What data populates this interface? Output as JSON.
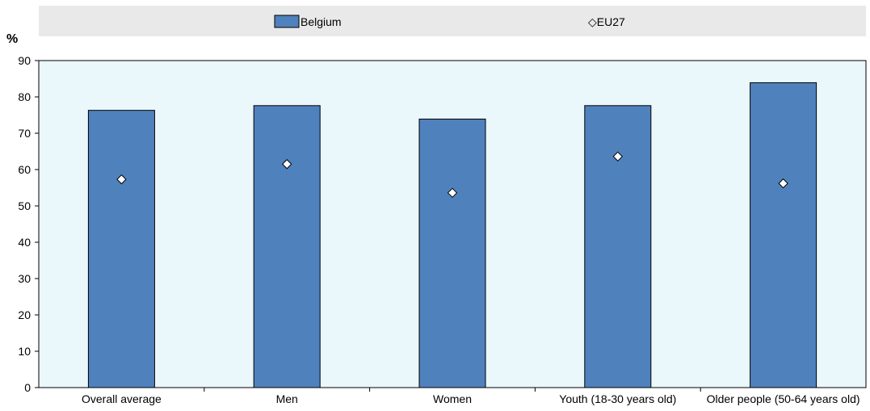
{
  "chart_data": {
    "type": "bar",
    "unit_label": "%",
    "categories": [
      "Overall average",
      "Men",
      "Women",
      "Youth (18-30 years old)",
      "Older people (50-64 years old)"
    ],
    "series": [
      {
        "name": "Belgium",
        "kind": "bar",
        "values": [
          76.3,
          77.6,
          73.9,
          77.6,
          83.9
        ]
      },
      {
        "name": "EU27",
        "kind": "marker",
        "values": [
          57.3,
          61.5,
          53.6,
          63.6,
          56.2
        ]
      }
    ],
    "ylim": [
      0,
      90
    ],
    "yticks": [
      0,
      10,
      20,
      30,
      40,
      50,
      60,
      70,
      80,
      90
    ],
    "legend": {
      "position": "top",
      "items": [
        {
          "symbol": "bar",
          "label": "Belgium"
        },
        {
          "symbol": "diamond",
          "label": "◇EU27"
        }
      ]
    },
    "grid": false,
    "colors": {
      "bar": "#4f81bd",
      "bar_edge": "#000000",
      "plot_bg": "#eaf7fb",
      "legend_bg": "#e9e9e9",
      "marker_fill": "#ffffff"
    }
  }
}
